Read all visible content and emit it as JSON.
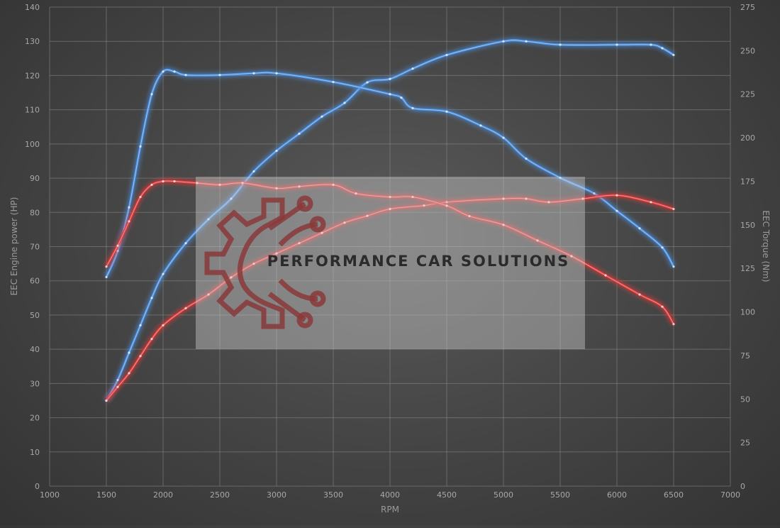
{
  "chart_data": {
    "type": "line",
    "xlabel": "RPM",
    "ylabel_left": "EEC Engine power (HP)",
    "ylabel_right": "EEC Torque (Nm)",
    "xlim": [
      1000,
      7000
    ],
    "xticks": [
      1000,
      1500,
      2000,
      2500,
      3000,
      3500,
      4000,
      4500,
      5000,
      5500,
      6000,
      6500,
      7000
    ],
    "ylim_left": [
      0,
      140
    ],
    "yticks_left": [
      0,
      10,
      20,
      30,
      40,
      50,
      60,
      70,
      80,
      90,
      100,
      110,
      120,
      130,
      140
    ],
    "ylim_right": [
      0,
      275
    ],
    "yticks_right": [
      0,
      25,
      50,
      75,
      100,
      125,
      150,
      175,
      200,
      225,
      250,
      275
    ],
    "grid": true,
    "series": [
      {
        "axis": "left",
        "color": "#4a8fe0",
        "x": [
          1500,
          1600,
          1700,
          1800,
          1900,
          2000,
          2200,
          2400,
          2600,
          2800,
          3000,
          3200,
          3400,
          3600,
          3800,
          4000,
          4200,
          4500,
          5000,
          5200,
          5500,
          6000,
          6300,
          6400,
          6500
        ],
        "y": [
          25,
          31,
          39,
          47,
          55,
          62,
          71,
          78,
          84,
          92,
          98,
          103,
          108,
          112,
          118,
          119,
          122,
          126,
          130,
          130,
          129,
          129,
          129,
          128,
          126
        ]
      },
      {
        "axis": "right",
        "color": "#4a8fe0",
        "x": [
          1500,
          1600,
          1700,
          1800,
          1900,
          2000,
          2100,
          2200,
          2500,
          2800,
          3000,
          3500,
          4000,
          4100,
          4200,
          4500,
          4800,
          5000,
          5200,
          5500,
          5800,
          6000,
          6200,
          6400,
          6500
        ],
        "y": [
          120,
          135,
          160,
          195,
          225,
          238,
          238,
          236,
          236,
          237,
          237,
          232,
          225,
          223,
          217,
          215,
          207,
          200,
          188,
          177,
          168,
          158,
          148,
          137,
          126
        ]
      },
      {
        "axis": "left",
        "color": "#e23a3a",
        "x": [
          1500,
          1600,
          1700,
          1800,
          1900,
          2000,
          2200,
          2400,
          2600,
          2800,
          3000,
          3200,
          3400,
          3600,
          3800,
          4000,
          4300,
          4500,
          5000,
          5200,
          5400,
          5700,
          6000,
          6300,
          6500
        ],
        "y": [
          25,
          29,
          33,
          38,
          43,
          47,
          52,
          56,
          61,
          65,
          68,
          71,
          74,
          77,
          79,
          81,
          82,
          83,
          84,
          84,
          83,
          84,
          85,
          83,
          81
        ]
      },
      {
        "axis": "right",
        "color": "#e23a3a",
        "x": [
          1500,
          1600,
          1700,
          1800,
          1900,
          2000,
          2100,
          2300,
          2500,
          2700,
          3000,
          3200,
          3500,
          3700,
          4000,
          4200,
          4500,
          4700,
          5000,
          5300,
          5600,
          5900,
          6200,
          6400,
          6500
        ],
        "y": [
          126,
          138,
          152,
          166,
          173,
          175,
          175,
          174,
          173,
          174,
          171,
          172,
          173,
          168,
          166,
          166,
          161,
          155,
          150,
          141,
          132,
          121,
          110,
          103,
          93
        ]
      }
    ]
  },
  "watermark": {
    "text": "PERFORMANCE CAR SOLUTIONS",
    "logo_icon": "gear-circuit-logo-icon",
    "logo_color": "#8a3a3a"
  }
}
